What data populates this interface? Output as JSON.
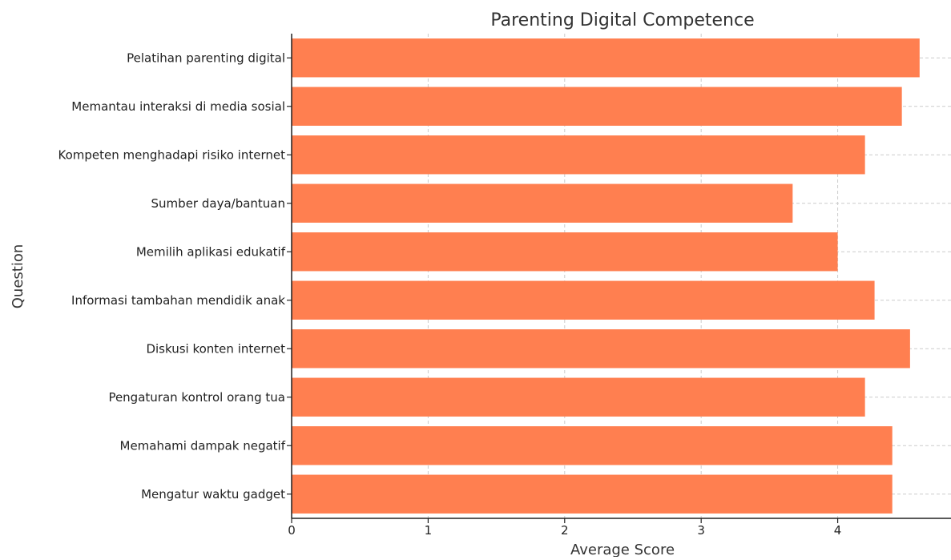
{
  "chart_data": {
    "type": "bar",
    "orientation": "horizontal",
    "title": "Parenting Digital Competence",
    "xlabel": "Average Score",
    "ylabel": "Question",
    "categories": [
      "Mengatur waktu gadget",
      "Memahami dampak negatif",
      "Pengaturan kontrol orang tua",
      "Diskusi konten internet",
      "Informasi tambahan mendidik anak",
      "Memilih aplikasi edukatif",
      "Sumber daya/bantuan",
      "Kompeten menghadapi risiko internet",
      "Memantau interaksi di media sosial",
      "Pelatihan parenting digital"
    ],
    "values": [
      4.4,
      4.4,
      4.2,
      4.53,
      4.27,
      4.0,
      3.67,
      4.2,
      4.47,
      4.6
    ],
    "xlim": [
      0,
      4.83
    ],
    "xticks": [
      0,
      1,
      2,
      3,
      4
    ],
    "grid": true,
    "bar_color": "#ff7f50"
  }
}
